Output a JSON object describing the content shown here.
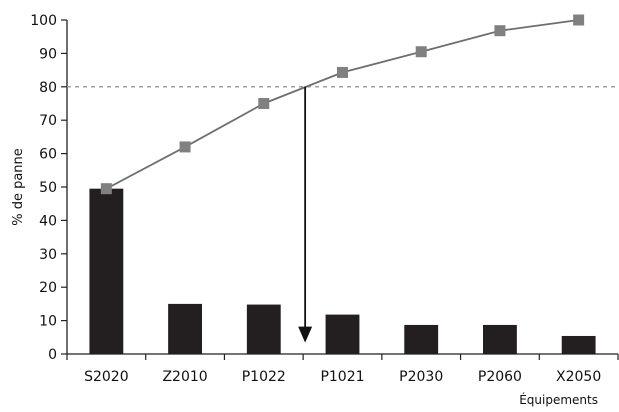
{
  "chart_data": {
    "type": "bar",
    "xlabel": "Équipements",
    "ylabel": "% de panne",
    "ylim": [
      0,
      100
    ],
    "yticks": [
      0,
      10,
      20,
      30,
      40,
      50,
      60,
      70,
      80,
      90,
      100
    ],
    "categories": [
      "S2020",
      "Z2010",
      "P1022",
      "P1021",
      "P2030",
      "P2060",
      "X2050"
    ],
    "series": [
      {
        "type": "bar",
        "values": [
          49.5,
          15,
          14.8,
          11.8,
          8.7,
          8.7,
          5.4
        ]
      },
      {
        "type": "line",
        "values": [
          49.5,
          62,
          75,
          84.3,
          90.5,
          96.8,
          100
        ]
      }
    ],
    "threshold": {
      "value": 80,
      "style": "dashed"
    },
    "annotation": {
      "type": "arrow",
      "from_value": 80,
      "to_value": 4,
      "between_categories": [
        "P1022",
        "P1021"
      ]
    },
    "grid": false,
    "colors": {
      "bars": "#231f20",
      "line": "#6d6e71",
      "markers": "#808080",
      "threshold": "#a0a0a0",
      "axis": "#222222"
    }
  }
}
